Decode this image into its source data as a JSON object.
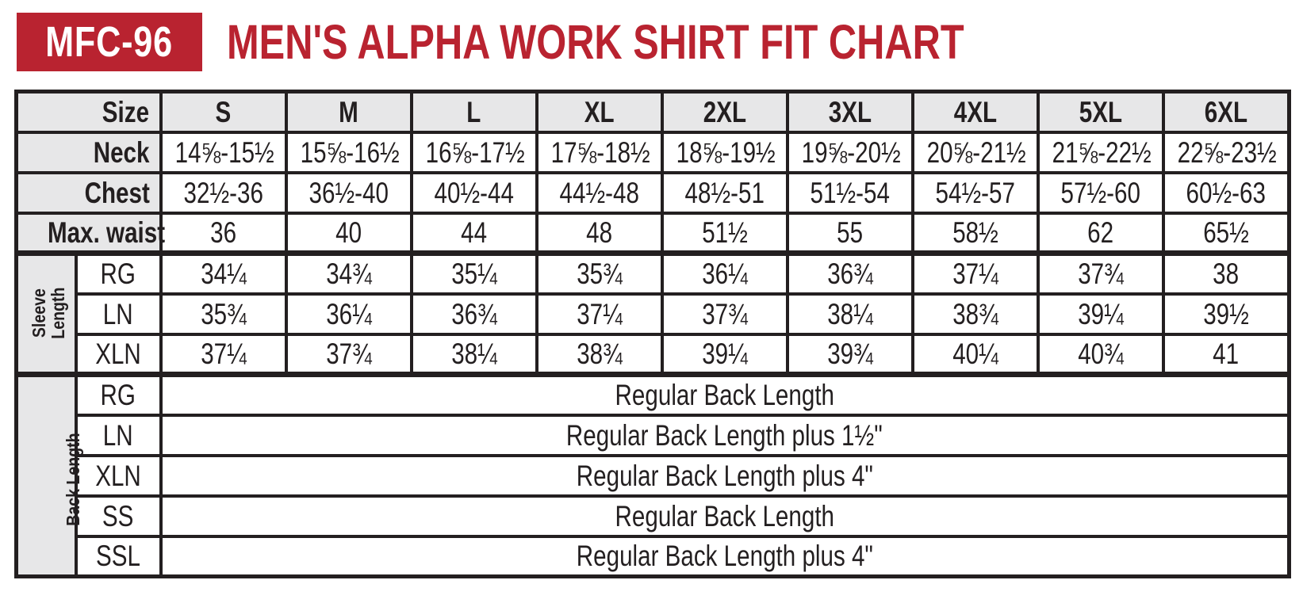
{
  "header": {
    "badge": "MFC-96",
    "title": "MEN'S ALPHA WORK SHIRT FIT CHART"
  },
  "colors": {
    "red": "#b92330",
    "header_gray": "#e7e7e8",
    "border": "#231f20",
    "text": "#231f20"
  },
  "table": {
    "size_label": "Size",
    "sizes": [
      "S",
      "M",
      "L",
      "XL",
      "2XL",
      "3XL",
      "4XL",
      "5XL",
      "6XL"
    ],
    "measurement_rows": [
      {
        "label": "Neck",
        "values": [
          "14⅝-15½",
          "15⅝-16½",
          "16⅝-17½",
          "17⅝-18½",
          "18⅝-19½",
          "19⅝-20½",
          "20⅝-21½",
          "21⅝-22½",
          "22⅝-23½"
        ]
      },
      {
        "label": "Chest",
        "values": [
          "32½-36",
          "36½-40",
          "40½-44",
          "44½-48",
          "48½-51",
          "51½-54",
          "54½-57",
          "57½-60",
          "60½-63"
        ]
      },
      {
        "label": "Max. waist",
        "values": [
          "36",
          "40",
          "44",
          "48",
          "51½",
          "55",
          "58½",
          "62",
          "65½"
        ]
      }
    ],
    "sleeve_length": {
      "group_label_lines": [
        "Sleeve",
        "Length"
      ],
      "rows": [
        {
          "label": "RG",
          "values": [
            "34¼",
            "34¾",
            "35¼",
            "35¾",
            "36¼",
            "36¾",
            "37¼",
            "37¾",
            "38"
          ]
        },
        {
          "label": "LN",
          "values": [
            "35¾",
            "36¼",
            "36¾",
            "37¼",
            "37¾",
            "38¼",
            "38¾",
            "39¼",
            "39½"
          ]
        },
        {
          "label": "XLN",
          "values": [
            "37¼",
            "37¾",
            "38¼",
            "38¾",
            "39¼",
            "39¾",
            "40¼",
            "40¾",
            "41"
          ]
        }
      ]
    },
    "back_length": {
      "group_label_lines": [
        "Back Length"
      ],
      "rows": [
        {
          "label": "RG",
          "value": "Regular Back Length"
        },
        {
          "label": "LN",
          "value": "Regular Back Length plus 1½\""
        },
        {
          "label": "XLN",
          "value": "Regular Back Length plus 4\""
        },
        {
          "label": "SS",
          "value": "Regular Back Length"
        },
        {
          "label": "SSL",
          "value": "Regular Back Length plus 4\""
        }
      ]
    }
  }
}
